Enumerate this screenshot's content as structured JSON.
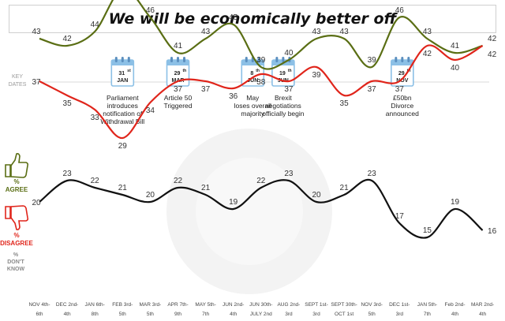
{
  "chart_data": {
    "type": "line",
    "title": "We will be economically better off",
    "key_dates_label": [
      "KEY",
      "DATES"
    ],
    "x": [
      "NOV 4th-6th",
      "DEC 2nd-4th",
      "JAN 6th-8th",
      "FEB 3rd-5th",
      "MAR 3rd-5th",
      "APR 7th-9th",
      "MAY 5th-7th",
      "JUN 2nd-4th",
      "JUN 30th-JULY 2nd",
      "AUG 2nd-3rd",
      "SEPT 1st-3rd",
      "SEPT 30th-OCT 1st",
      "NOV 3rd-5th",
      "DEC 1st-3rd",
      "JAN 5th-7th",
      "Feb 2nd-4th",
      "MAR 2nd-4th"
    ],
    "x_tick_lines": [
      [
        "NOV 4th-",
        "6th"
      ],
      [
        "DEC 2nd-",
        "4th"
      ],
      [
        "JAN 6th-",
        "8th"
      ],
      [
        "FEB 3rd-",
        "5th"
      ],
      [
        "MAR 3rd-",
        "5th"
      ],
      [
        "APR 7th-",
        "9th"
      ],
      [
        "MAY 5th-",
        "7th"
      ],
      [
        "JUN 2nd-",
        "4th"
      ],
      [
        "JUN 30th-",
        "JULY 2nd"
      ],
      [
        "AUG 2nd-",
        "3rd"
      ],
      [
        "SEPT 1st-",
        "3rd"
      ],
      [
        "SEPT 30th-",
        "OCT 1st"
      ],
      [
        "NOV 3rd-",
        "5th"
      ],
      [
        "DEC 1st-",
        "3rd"
      ],
      [
        "JAN 5th-",
        "7th"
      ],
      [
        "Feb 2nd-",
        "4th"
      ],
      [
        "MAR 2nd-",
        "4th"
      ]
    ],
    "series": [
      {
        "name": "% AGREE",
        "label_lines": [
          "%",
          "AGREE"
        ],
        "color": "#5a6e14",
        "icon": "thumbs-up-icon",
        "values": [
          43,
          42,
          44,
          50,
          46,
          41,
          43,
          45,
          39,
          40,
          43,
          43,
          39,
          46,
          43,
          41,
          42
        ]
      },
      {
        "name": "% DISAGREE",
        "label_lines": [
          "%",
          "DISAGREE"
        ],
        "color": "#e0251b",
        "icon": "thumbs-down-icon",
        "values": [
          37,
          35,
          33,
          29,
          34,
          37,
          37,
          36,
          38,
          37,
          39,
          35,
          37,
          37,
          42,
          40,
          42
        ]
      },
      {
        "name": "% DON'T KNOW",
        "label_lines": [
          "%",
          "DON'T",
          "KNOW"
        ],
        "color": "#111111",
        "icon": "",
        "values": [
          20,
          23,
          22,
          21,
          20,
          22,
          21,
          19,
          22,
          23,
          20,
          21,
          23,
          17,
          15,
          19,
          16
        ]
      }
    ],
    "key_dates": [
      {
        "day": "31",
        "sup": "st",
        "month": "JAN",
        "x_index": 3.0,
        "lines": [
          "Parliament",
          "introduces",
          "notification of",
          "Withdrawal Bill"
        ]
      },
      {
        "day": "29",
        "sup": "th",
        "month": "MAR",
        "x_index": 5.0,
        "lines": [
          "Article 50",
          "Triggered"
        ]
      },
      {
        "day": "8",
        "sup": "th",
        "month": "JUN",
        "x_index": 7.7,
        "lines": [
          "May",
          "loses overall",
          "majority"
        ]
      },
      {
        "day": "19",
        "sup": "th",
        "month": "JUN",
        "x_index": 8.8,
        "lines": [
          "Brexit",
          "negotiations",
          "officially begin"
        ]
      },
      {
        "day": "29",
        "sup": "th",
        "month": "NOV",
        "x_index": 13.1,
        "lines": [
          "£50bn",
          "Divorce",
          "announced"
        ]
      }
    ],
    "grid": false,
    "legend": "left"
  }
}
